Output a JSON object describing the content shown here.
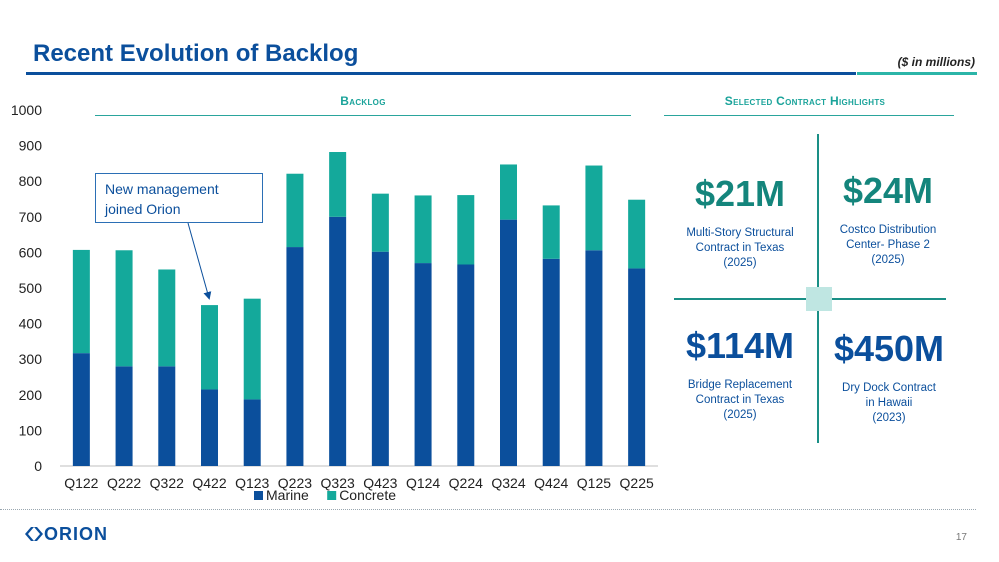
{
  "header": {
    "title": "Recent Evolution of Backlog",
    "units": "($ in millions)"
  },
  "sections": {
    "backlog": "Backlog",
    "highlights": "Selected Contract Highlights"
  },
  "callout": {
    "text": "New management joined Orion",
    "line1": "New management",
    "line2": "joined Orion"
  },
  "chart_data": {
    "type": "bar",
    "stacked": true,
    "categories": [
      "Q122",
      "Q222",
      "Q322",
      "Q422",
      "Q123",
      "Q223",
      "Q323",
      "Q423",
      "Q124",
      "Q224",
      "Q324",
      "Q424",
      "Q125",
      "Q225"
    ],
    "series": [
      {
        "name": "Marine",
        "color": "#0b4f9c",
        "values": [
          317,
          280,
          280,
          215,
          187,
          615,
          700,
          602,
          570,
          566,
          692,
          582,
          606,
          555
        ]
      },
      {
        "name": "Concrete",
        "color": "#14a99b",
        "values": [
          290,
          326,
          272,
          237,
          283,
          206,
          182,
          163,
          190,
          195,
          155,
          150,
          238,
          193
        ]
      }
    ],
    "ylim": [
      0,
      1000
    ],
    "yticks": [
      0,
      100,
      200,
      300,
      400,
      500,
      600,
      700,
      800,
      900,
      1000
    ],
    "legend": "bottom",
    "grid": false,
    "title": "Backlog",
    "xlabel": "",
    "ylabel": ""
  },
  "highlights": [
    {
      "amount": "$21M",
      "line1": "Multi-Story Structural",
      "line2": "Contract in Texas",
      "line3": "(2025)",
      "color": "teal"
    },
    {
      "amount": "$24M",
      "line1": "Costco Distribution",
      "line2": "Center- Phase 2",
      "line3": "(2025)",
      "color": "teal"
    },
    {
      "amount": "$114M",
      "line1": "Bridge Replacement",
      "line2": "Contract in Texas",
      "line3": "(2025)",
      "color": "blue"
    },
    {
      "amount": "$450M",
      "line1": "Dry Dock Contract",
      "line2": "in Hawaii",
      "line3": "(2023)",
      "color": "blue"
    }
  ],
  "footer": {
    "logo": "ORION",
    "page": "17"
  }
}
